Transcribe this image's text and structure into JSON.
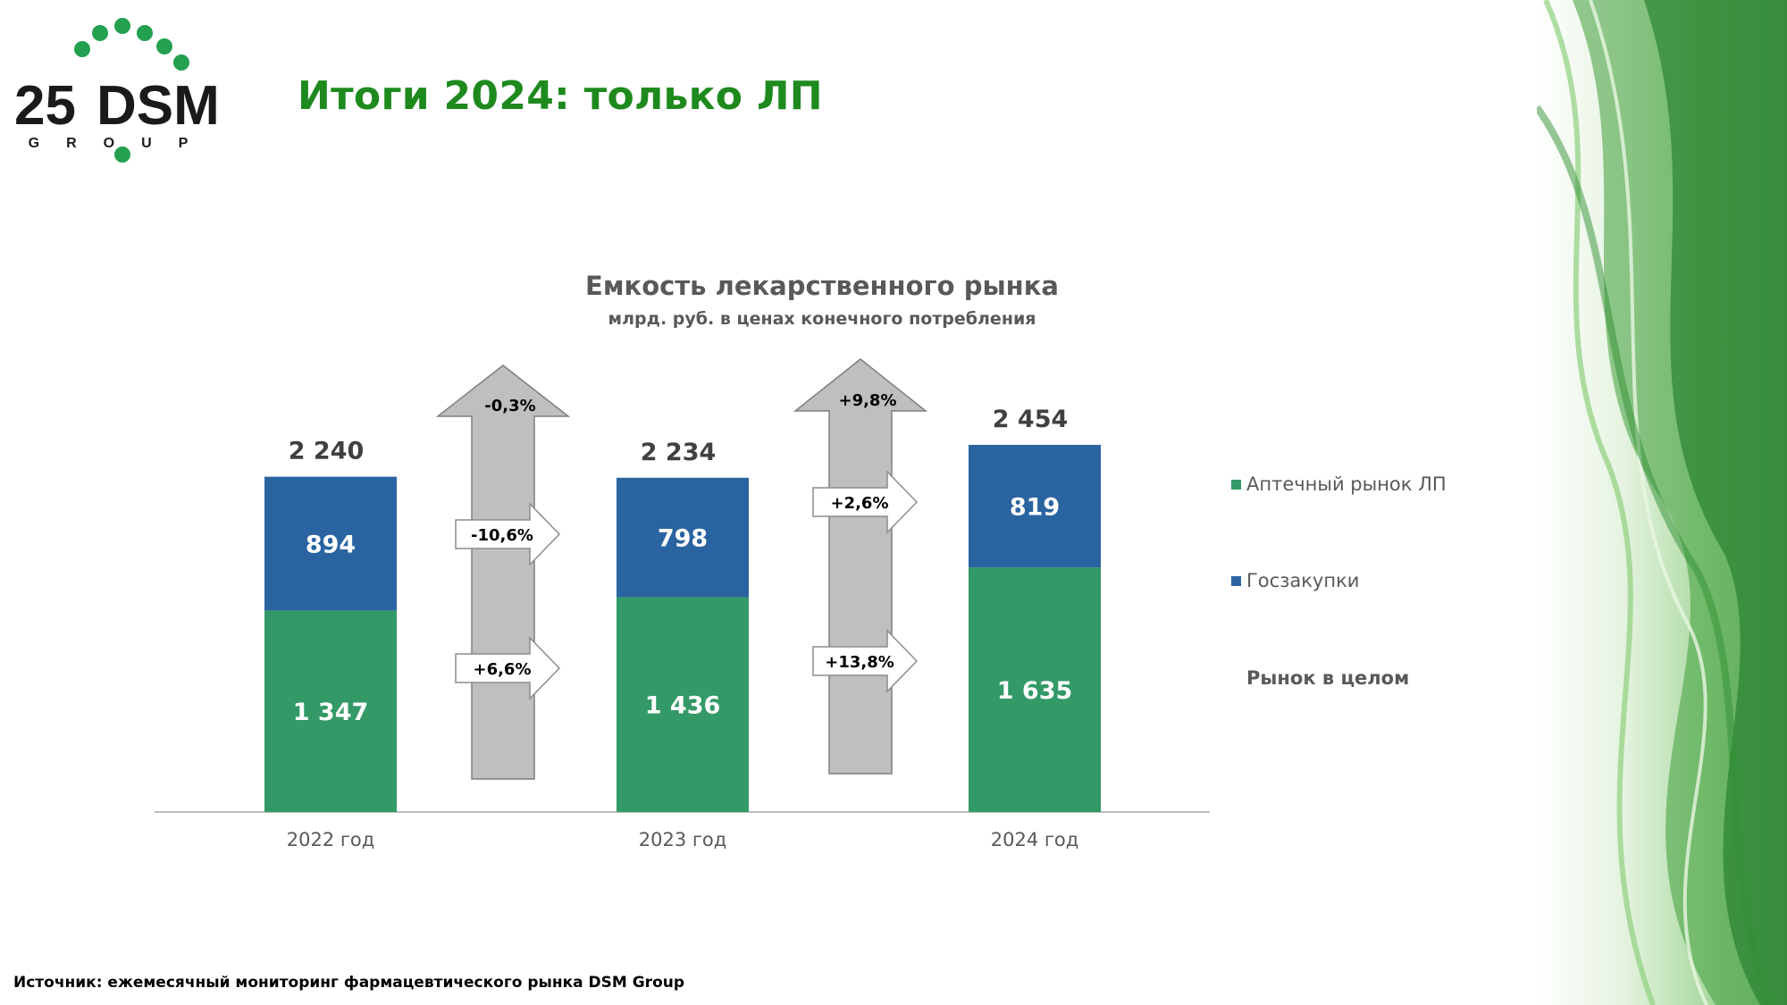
{
  "header": {
    "logo_number": "25",
    "logo_brand": "DSM",
    "logo_sub": "GROUP",
    "title": "Итоги 2024: только ЛП"
  },
  "source_note": "Источник: ежемесячный мониторинг фармацевтического рынка DSM Group",
  "colors": {
    "title_green": "#1e8a1e",
    "pharmacy_green": "#339966",
    "gov_blue": "#2a64a0",
    "arrow_gray": "#bfbfbf",
    "logo_dots": "#23a050"
  },
  "chart_data": {
    "type": "bar",
    "stacked": true,
    "title": "Емкость лекарственного рынка",
    "subtitle": "млрд. руб. в ценах конечного потребления",
    "categories": [
      "2022 год",
      "2023 год",
      "2024 год"
    ],
    "series": [
      {
        "name": "Аптечный рынок ЛП",
        "color": "#339966",
        "values": [
          1347,
          1436,
          1635
        ],
        "labels": [
          "1 347",
          "1 436",
          "1 635"
        ]
      },
      {
        "name": "Госзакупки",
        "color": "#2a64a0",
        "values": [
          894,
          798,
          819
        ],
        "labels": [
          "894",
          "798",
          "819"
        ]
      }
    ],
    "totals": {
      "name": "Рынок в целом",
      "values": [
        2240,
        2234,
        2454
      ],
      "labels": [
        "2 240",
        "2 234",
        "2 454"
      ]
    },
    "growth": [
      {
        "total": "-0,3%",
        "gov": "-10,6%",
        "pharmacy": "+6,6%"
      },
      {
        "total": "+9,8%",
        "gov": "+2,6%",
        "pharmacy": "+13,8%"
      }
    ],
    "ylim": [
      0,
      2700
    ],
    "grid": false,
    "legend_position": "right"
  }
}
